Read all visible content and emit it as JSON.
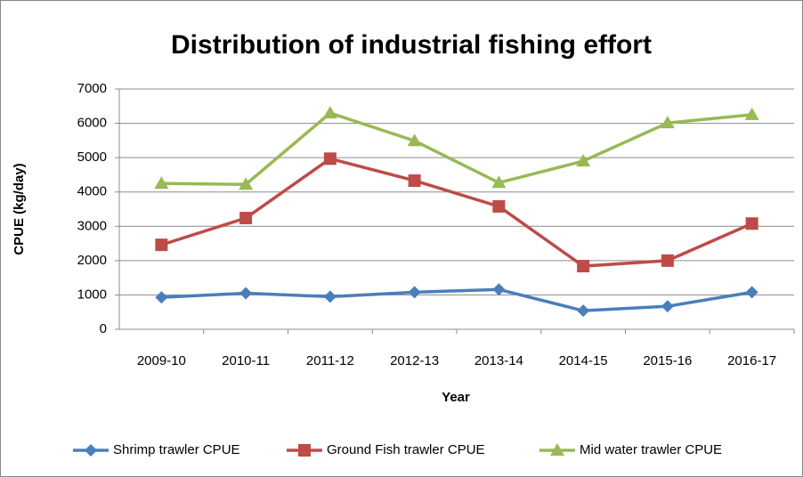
{
  "chart_data": {
    "type": "line",
    "title": "Distribution of industrial fishing effort",
    "x_label": "Year",
    "y_label": "CPUE (kg/day)",
    "categories": [
      "2009-10",
      "2010-11",
      "2011-12",
      "2012-13",
      "2013-14",
      "2014-15",
      "2015-16",
      "2016-17"
    ],
    "series": [
      {
        "name": "Shrimp trawler CPUE",
        "color": "#4a7ebb",
        "marker": "diamond",
        "values": [
          930,
          1050,
          950,
          1080,
          1160,
          540,
          670,
          1080
        ]
      },
      {
        "name": "Ground Fish trawler CPUE",
        "color": "#be4b48",
        "marker": "square",
        "values": [
          2460,
          3240,
          4970,
          4330,
          3580,
          1840,
          2000,
          3080
        ]
      },
      {
        "name": "Mid water trawler CPUE",
        "color": "#98b954",
        "marker": "triangle",
        "values": [
          4250,
          4220,
          6300,
          5490,
          4270,
          4900,
          6010,
          6250
        ]
      }
    ],
    "ylim": [
      0,
      7000
    ],
    "yticks": [
      0,
      1000,
      2000,
      3000,
      4000,
      5000,
      6000,
      7000
    ],
    "grid": true,
    "legend": "bottom"
  }
}
